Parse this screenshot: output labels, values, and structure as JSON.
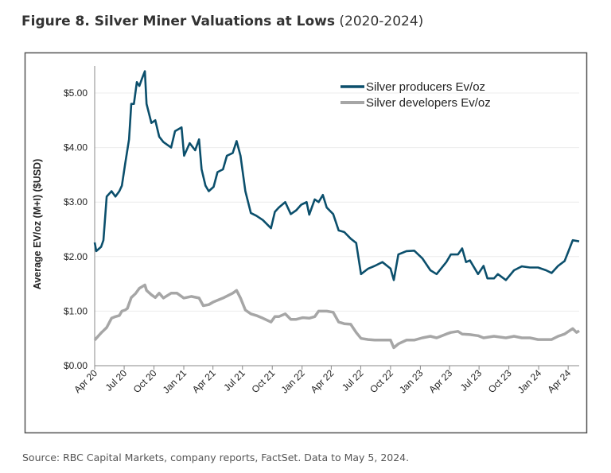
{
  "title": {
    "bold": "Figure 8. Silver Miner Valuations at Lows",
    "suffix": " (2020-2024)"
  },
  "source": "Source: RBC Capital Markets, company reports, FactSet. Data to May 5, 2024.",
  "chart_data": {
    "type": "line",
    "title": "Figure 8. Silver Miner Valuations at Lows (2020-2024)",
    "xlabel": "",
    "ylabel": "Average EV/oz (M+I) ($USD)",
    "ylim": [
      0,
      5.5
    ],
    "xlim": [
      "2020-04-01",
      "2024-05-05"
    ],
    "yticks": [
      0,
      1,
      2,
      3,
      4,
      5
    ],
    "ytick_labels": [
      "$0.00",
      "$1.00",
      "$2.00",
      "$3.00",
      "$4.00",
      "$5.00"
    ],
    "xticks": [
      "2020-04-01",
      "2020-07-01",
      "2020-10-01",
      "2021-01-01",
      "2021-04-01",
      "2021-07-01",
      "2021-10-01",
      "2022-01-01",
      "2022-04-01",
      "2022-07-01",
      "2022-10-01",
      "2023-01-01",
      "2023-04-01",
      "2023-07-01",
      "2023-10-01",
      "2024-01-01",
      "2024-04-01"
    ],
    "xtick_labels": [
      "Apr 20",
      "Jul 20",
      "Oct 20",
      "Jan 21",
      "Apr 21",
      "Jul 21",
      "Oct 21",
      "Jan 22",
      "Apr 22",
      "Jul 22",
      "Oct 22",
      "Jan 23",
      "Apr 23",
      "Jul 23",
      "Oct 23",
      "Jan 24",
      "Apr 24"
    ],
    "grid": "horizontal",
    "legend": "top-right",
    "series": [
      {
        "name": "Silver producers Ev/oz",
        "color": "#0b4f6c",
        "points": [
          [
            "2020-04-01",
            2.26
          ],
          [
            "2020-04-06",
            2.1
          ],
          [
            "2020-04-21",
            2.18
          ],
          [
            "2020-04-28",
            2.3
          ],
          [
            "2020-05-08",
            3.1
          ],
          [
            "2020-05-23",
            3.2
          ],
          [
            "2020-06-04",
            3.1
          ],
          [
            "2020-06-16",
            3.2
          ],
          [
            "2020-06-24",
            3.3
          ],
          [
            "2020-07-04",
            3.7
          ],
          [
            "2020-07-16",
            4.15
          ],
          [
            "2020-07-23",
            4.8
          ],
          [
            "2020-07-31",
            4.8
          ],
          [
            "2020-08-09",
            5.2
          ],
          [
            "2020-08-17",
            5.13
          ],
          [
            "2020-08-24",
            5.25
          ],
          [
            "2020-09-03",
            5.4
          ],
          [
            "2020-09-08",
            4.8
          ],
          [
            "2020-09-23",
            4.45
          ],
          [
            "2020-10-05",
            4.5
          ],
          [
            "2020-10-17",
            4.2
          ],
          [
            "2020-10-30",
            4.1
          ],
          [
            "2020-11-23",
            4.0
          ],
          [
            "2020-12-05",
            4.3
          ],
          [
            "2020-12-25",
            4.37
          ],
          [
            "2021-01-02",
            3.85
          ],
          [
            "2021-01-19",
            4.08
          ],
          [
            "2021-02-05",
            3.95
          ],
          [
            "2021-02-17",
            4.15
          ],
          [
            "2021-02-25",
            3.6
          ],
          [
            "2021-03-09",
            3.3
          ],
          [
            "2021-03-19",
            3.2
          ],
          [
            "2021-04-03",
            3.28
          ],
          [
            "2021-04-15",
            3.55
          ],
          [
            "2021-05-02",
            3.6
          ],
          [
            "2021-05-14",
            3.85
          ],
          [
            "2021-06-01",
            3.9
          ],
          [
            "2021-06-13",
            4.12
          ],
          [
            "2021-06-25",
            3.85
          ],
          [
            "2021-07-10",
            3.2
          ],
          [
            "2021-07-27",
            2.8
          ],
          [
            "2021-08-13",
            2.75
          ],
          [
            "2021-09-02",
            2.67
          ],
          [
            "2021-09-27",
            2.52
          ],
          [
            "2021-10-09",
            2.82
          ],
          [
            "2021-10-21",
            2.9
          ],
          [
            "2021-11-10",
            3.0
          ],
          [
            "2021-11-27",
            2.78
          ],
          [
            "2021-12-14",
            2.85
          ],
          [
            "2021-12-29",
            2.95
          ],
          [
            "2022-01-15",
            3.0
          ],
          [
            "2022-01-23",
            2.77
          ],
          [
            "2022-02-09",
            3.05
          ],
          [
            "2022-02-21",
            3.0
          ],
          [
            "2022-03-06",
            3.13
          ],
          [
            "2022-03-18",
            2.9
          ],
          [
            "2022-04-07",
            2.78
          ],
          [
            "2022-04-24",
            2.48
          ],
          [
            "2022-05-11",
            2.45
          ],
          [
            "2022-05-31",
            2.33
          ],
          [
            "2022-06-17",
            2.25
          ],
          [
            "2022-07-02",
            1.68
          ],
          [
            "2022-07-24",
            1.78
          ],
          [
            "2022-08-13",
            1.83
          ],
          [
            "2022-09-06",
            1.9
          ],
          [
            "2022-10-01",
            1.78
          ],
          [
            "2022-10-11",
            1.57
          ],
          [
            "2022-10-25",
            2.04
          ],
          [
            "2022-11-19",
            2.1
          ],
          [
            "2022-12-13",
            2.11
          ],
          [
            "2023-01-07",
            1.97
          ],
          [
            "2023-02-01",
            1.75
          ],
          [
            "2023-02-20",
            1.68
          ],
          [
            "2023-03-22",
            1.9
          ],
          [
            "2023-04-05",
            2.04
          ],
          [
            "2023-04-27",
            2.04
          ],
          [
            "2023-05-10",
            2.15
          ],
          [
            "2023-05-22",
            1.9
          ],
          [
            "2023-06-03",
            1.93
          ],
          [
            "2023-06-28",
            1.68
          ],
          [
            "2023-07-15",
            1.83
          ],
          [
            "2023-07-27",
            1.6
          ],
          [
            "2023-08-16",
            1.6
          ],
          [
            "2023-08-28",
            1.68
          ],
          [
            "2023-09-22",
            1.57
          ],
          [
            "2023-10-17",
            1.75
          ],
          [
            "2023-11-10",
            1.82
          ],
          [
            "2023-12-05",
            1.8
          ],
          [
            "2023-12-30",
            1.8
          ],
          [
            "2024-01-24",
            1.75
          ],
          [
            "2024-02-10",
            1.7
          ],
          [
            "2024-03-01",
            1.83
          ],
          [
            "2024-03-21",
            1.92
          ],
          [
            "2024-04-02",
            2.1
          ],
          [
            "2024-04-15",
            2.3
          ],
          [
            "2024-05-05",
            2.28
          ]
        ]
      },
      {
        "name": "Silver developers Ev/oz",
        "color": "#a6a6a6",
        "points": [
          [
            "2020-04-01",
            0.47
          ],
          [
            "2020-04-21",
            0.6
          ],
          [
            "2020-05-08",
            0.7
          ],
          [
            "2020-05-23",
            0.87
          ],
          [
            "2020-06-04",
            0.9
          ],
          [
            "2020-06-16",
            0.92
          ],
          [
            "2020-06-24",
            1.0
          ],
          [
            "2020-07-04",
            1.02
          ],
          [
            "2020-07-11",
            1.05
          ],
          [
            "2020-07-23",
            1.25
          ],
          [
            "2020-08-05",
            1.32
          ],
          [
            "2020-08-17",
            1.42
          ],
          [
            "2020-09-03",
            1.48
          ],
          [
            "2020-09-08",
            1.38
          ],
          [
            "2020-09-23",
            1.3
          ],
          [
            "2020-10-05",
            1.25
          ],
          [
            "2020-10-17",
            1.33
          ],
          [
            "2020-10-30",
            1.24
          ],
          [
            "2020-11-23",
            1.33
          ],
          [
            "2020-12-11",
            1.33
          ],
          [
            "2021-01-01",
            1.24
          ],
          [
            "2021-01-24",
            1.27
          ],
          [
            "2021-02-17",
            1.24
          ],
          [
            "2021-03-02",
            1.1
          ],
          [
            "2021-03-19",
            1.12
          ],
          [
            "2021-04-03",
            1.17
          ],
          [
            "2021-05-02",
            1.24
          ],
          [
            "2021-06-01",
            1.33
          ],
          [
            "2021-06-13",
            1.38
          ],
          [
            "2021-06-25",
            1.24
          ],
          [
            "2021-07-10",
            1.02
          ],
          [
            "2021-07-27",
            0.95
          ],
          [
            "2021-08-13",
            0.92
          ],
          [
            "2021-09-02",
            0.87
          ],
          [
            "2021-09-27",
            0.8
          ],
          [
            "2021-10-09",
            0.9
          ],
          [
            "2021-10-21",
            0.9
          ],
          [
            "2021-11-10",
            0.95
          ],
          [
            "2021-11-27",
            0.85
          ],
          [
            "2021-12-14",
            0.85
          ],
          [
            "2022-01-03",
            0.88
          ],
          [
            "2022-01-23",
            0.87
          ],
          [
            "2022-02-09",
            0.9
          ],
          [
            "2022-02-21",
            1.0
          ],
          [
            "2022-03-18",
            1.0
          ],
          [
            "2022-04-07",
            0.98
          ],
          [
            "2022-04-24",
            0.8
          ],
          [
            "2022-05-11",
            0.77
          ],
          [
            "2022-05-31",
            0.76
          ],
          [
            "2022-06-17",
            0.61
          ],
          [
            "2022-07-02",
            0.5
          ],
          [
            "2022-07-24",
            0.48
          ],
          [
            "2022-08-13",
            0.47
          ],
          [
            "2022-09-06",
            0.47
          ],
          [
            "2022-10-01",
            0.47
          ],
          [
            "2022-10-11",
            0.33
          ],
          [
            "2022-10-25",
            0.4
          ],
          [
            "2022-11-19",
            0.47
          ],
          [
            "2022-12-13",
            0.47
          ],
          [
            "2023-01-07",
            0.51
          ],
          [
            "2023-02-01",
            0.54
          ],
          [
            "2023-02-20",
            0.51
          ],
          [
            "2023-03-22",
            0.58
          ],
          [
            "2023-04-05",
            0.61
          ],
          [
            "2023-04-27",
            0.63
          ],
          [
            "2023-05-10",
            0.58
          ],
          [
            "2023-06-03",
            0.57
          ],
          [
            "2023-06-28",
            0.55
          ],
          [
            "2023-07-15",
            0.51
          ],
          [
            "2023-08-16",
            0.54
          ],
          [
            "2023-09-22",
            0.51
          ],
          [
            "2023-10-17",
            0.54
          ],
          [
            "2023-11-10",
            0.51
          ],
          [
            "2023-12-05",
            0.51
          ],
          [
            "2023-12-30",
            0.48
          ],
          [
            "2024-01-24",
            0.48
          ],
          [
            "2024-02-10",
            0.48
          ],
          [
            "2024-03-01",
            0.54
          ],
          [
            "2024-03-21",
            0.58
          ],
          [
            "2024-04-02",
            0.63
          ],
          [
            "2024-04-15",
            0.68
          ],
          [
            "2024-04-27",
            0.61
          ],
          [
            "2024-05-05",
            0.64
          ]
        ]
      }
    ]
  }
}
